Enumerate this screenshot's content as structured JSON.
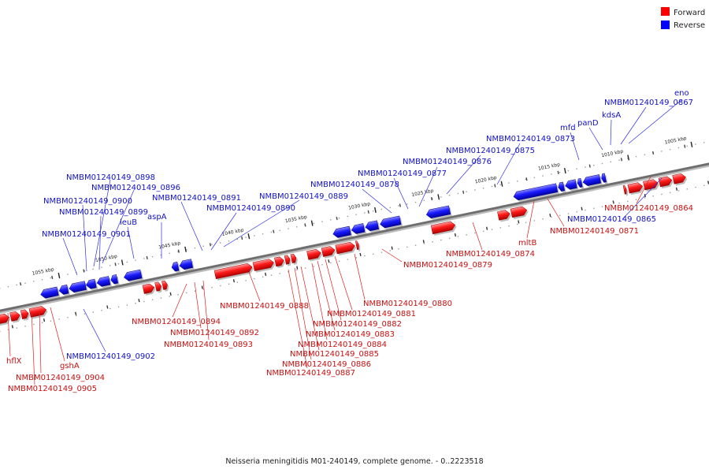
{
  "legend": [
    {
      "label": "Forward",
      "color": "#ff0000"
    },
    {
      "label": "Reverse",
      "color": "#0000ff"
    }
  ],
  "caption": "Neisseria meningitidis M01-240149, complete genome. - 0..2223518",
  "scale": [
    "1005 kbp",
    "1010 kbp",
    "1015 kbp",
    "1020 kbp",
    "1025 kbp",
    "1030 kbp",
    "1035 kbp",
    "1040 kbp",
    "1045 kbp",
    "1050 kbp",
    "1055 kbp"
  ],
  "reverse_labels": [
    "NMBM01240149_0898",
    "NMBM01240149_0896",
    "NMBM01240149_0900",
    "NMBM01240149_0899",
    "leuB",
    "NMBM01240149_0901",
    "aspA",
    "NMBM01240149_0891",
    "NMBM01240149_0890",
    "NMBM01240149_0889",
    "NMBM01240149_0878",
    "NMBM01240149_0877",
    "NMBM01240149_0876",
    "NMBM01240149_0875",
    "NMBM01240149_0873",
    "mfd",
    "panD",
    "kdsA",
    "NMBM01240149_0867",
    "eno",
    "NMBM01240149_0865",
    "NMBM01240149_0902"
  ],
  "forward_labels": [
    "hflX",
    "gshA",
    "NMBM01240149_0904",
    "NMBM01240149_0905",
    "NMBM01240149_0894",
    "NMBM01240149_0892",
    "NMBM01240149_0893",
    "NMBM01240149_0888",
    "NMBM01240149_0887",
    "NMBM01240149_0886",
    "NMBM01240149_0885",
    "NMBM01240149_0884",
    "NMBM01240149_0883",
    "NMBM01240149_0882",
    "NMBM01240149_0881",
    "NMBM01240149_0880",
    "NMBM01240149_0879",
    "NMBM01240149_0874",
    "mltB",
    "NMBM01240149_0871",
    "NMBM01240149_0864"
  ]
}
